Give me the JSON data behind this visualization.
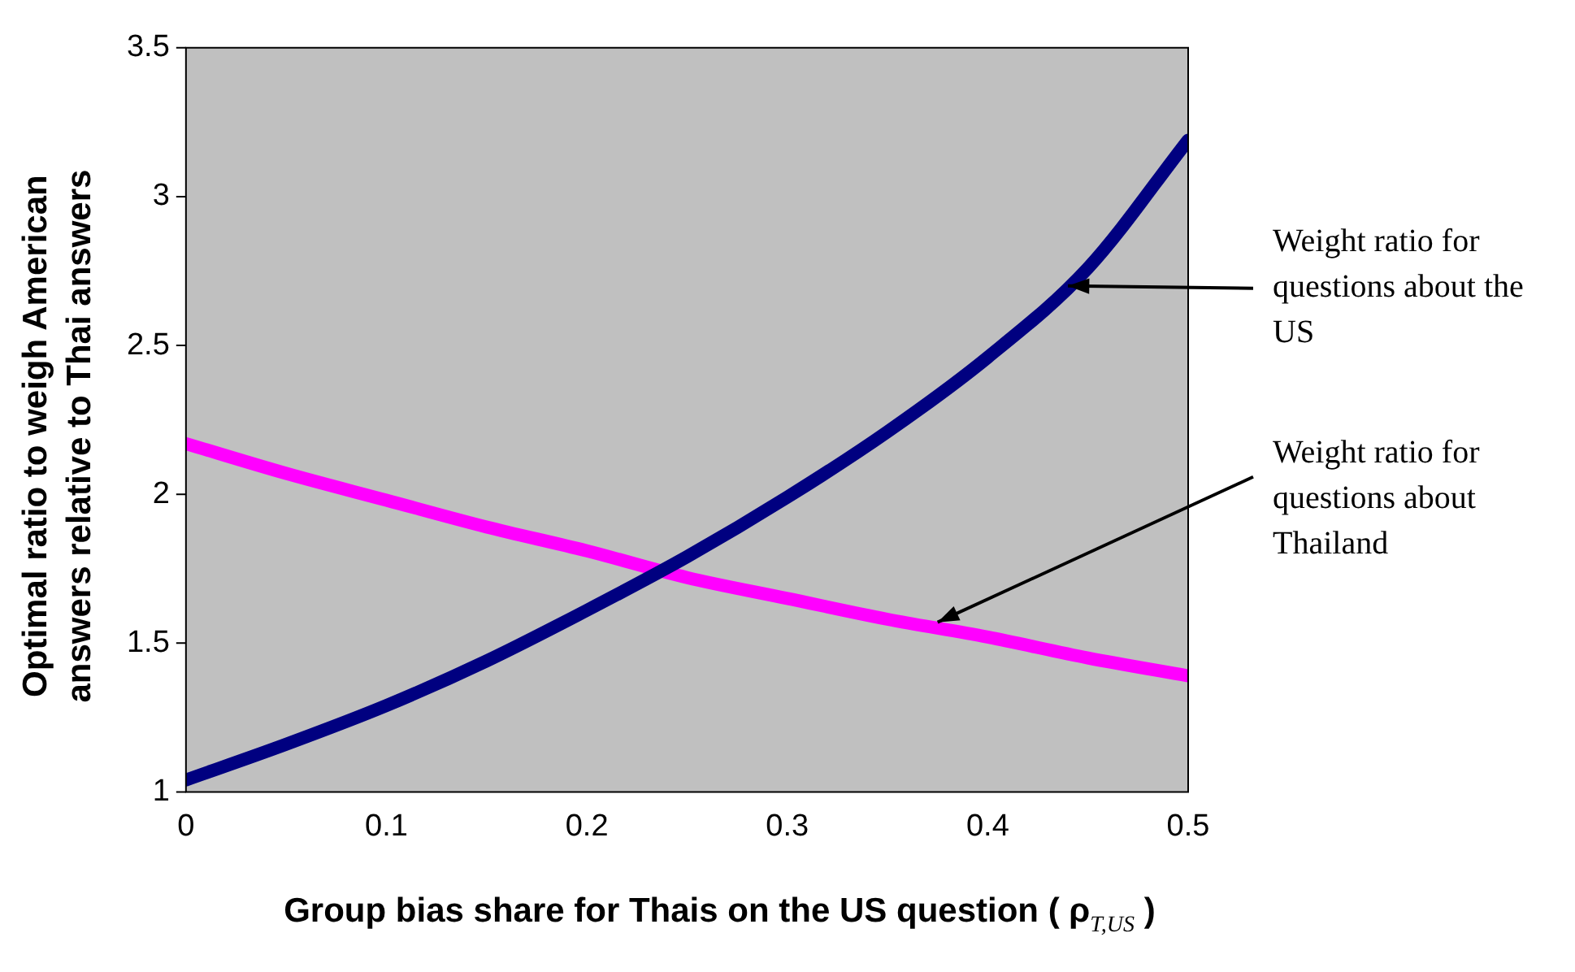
{
  "chart_data": {
    "type": "line",
    "xlabel": "Group bias share for Thais on the US question ( ρ$_{T,US}$ )",
    "ylabel": "Optimal ratio to weigh American answers relative to Thai answers",
    "x": [
      0,
      0.05,
      0.1,
      0.15,
      0.2,
      0.25,
      0.3,
      0.35,
      0.4,
      0.45,
      0.5
    ],
    "series": [
      {
        "color": "#000080",
        "values": [
          1.04,
          1.16,
          1.29,
          1.44,
          1.61,
          1.79,
          1.99,
          2.21,
          2.46,
          2.76,
          3.19
        ]
      },
      {
        "color": "#ff00ff",
        "values": [
          2.17,
          2.07,
          1.98,
          1.89,
          1.81,
          1.72,
          1.65,
          1.58,
          1.52,
          1.45,
          1.39
        ]
      }
    ],
    "xlim": [
      0,
      0.5
    ],
    "xticks": [
      0,
      0.1,
      0.2,
      0.3,
      0.4,
      0.5
    ],
    "ylim": [
      1,
      3.5
    ],
    "yticks": [
      1,
      1.5,
      2,
      2.5,
      3,
      3.5
    ],
    "grid": false,
    "legend": false,
    "marker": "none",
    "line_style": "solid",
    "annotations": [
      {
        "text": "Weight ratio for questions about the US",
        "x": 0.44,
        "y": 2.7
      },
      {
        "text": "Weight ratio for questions about Thailand",
        "x": 0.375,
        "y": 1.57
      }
    ]
  }
}
